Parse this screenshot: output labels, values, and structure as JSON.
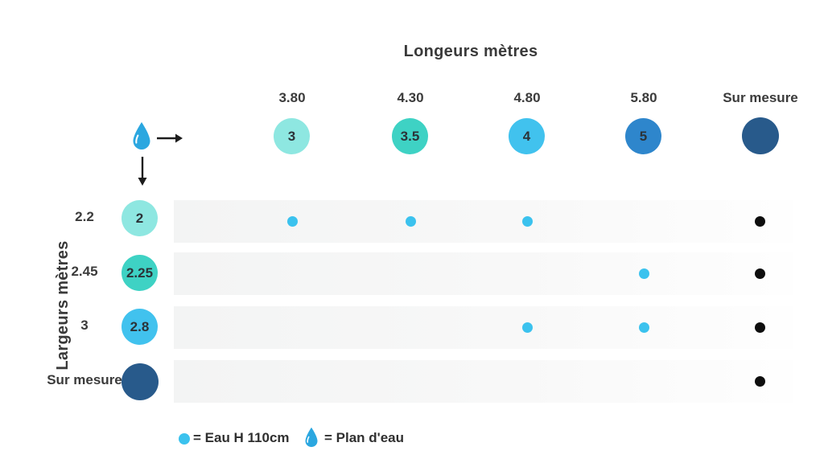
{
  "colors": {
    "eau_dot": "#3bc2ee",
    "sur_mesure_dot": "#0e0e0e",
    "drop_icon": "#2ba7e0",
    "text_dark": "#3a3a3a",
    "navy": "#285a8b"
  },
  "chart_data": {
    "type": "table",
    "title": "Longeurs mètres",
    "row_axis_label": "Largeurs mètres",
    "columns": [
      {
        "header": "3.80",
        "water_length": "3",
        "color": "#8ee7e1"
      },
      {
        "header": "4.30",
        "water_length": "3.5",
        "color": "#3ed2c4"
      },
      {
        "header": "4.80",
        "water_length": "4",
        "color": "#41c2ee"
      },
      {
        "header": "5.80",
        "water_length": "5",
        "color": "#2e86cc"
      },
      {
        "header": "Sur mesure",
        "water_length": "",
        "color": "#285a8b"
      }
    ],
    "rows": [
      {
        "label": "2.2",
        "water_width": "2",
        "color": "#8ee7e1",
        "cells": [
          "eau",
          "eau",
          "eau",
          "",
          "custom"
        ]
      },
      {
        "label": "2.45",
        "water_width": "2.25",
        "color": "#3ed2c4",
        "cells": [
          "",
          "",
          "",
          "eau",
          "custom"
        ]
      },
      {
        "label": "3",
        "water_width": "2.8",
        "color": "#41c2ee",
        "cells": [
          "",
          "",
          "eau",
          "eau",
          "custom"
        ]
      },
      {
        "label": "Sur mesure",
        "water_width": "",
        "color": "#285a8b",
        "cells": [
          "",
          "",
          "",
          "",
          "custom"
        ]
      }
    ],
    "legend": [
      {
        "symbol": "eau-dot",
        "label": "= Eau H 110cm"
      },
      {
        "symbol": "water-drop",
        "label": "= Plan d'eau"
      }
    ]
  }
}
